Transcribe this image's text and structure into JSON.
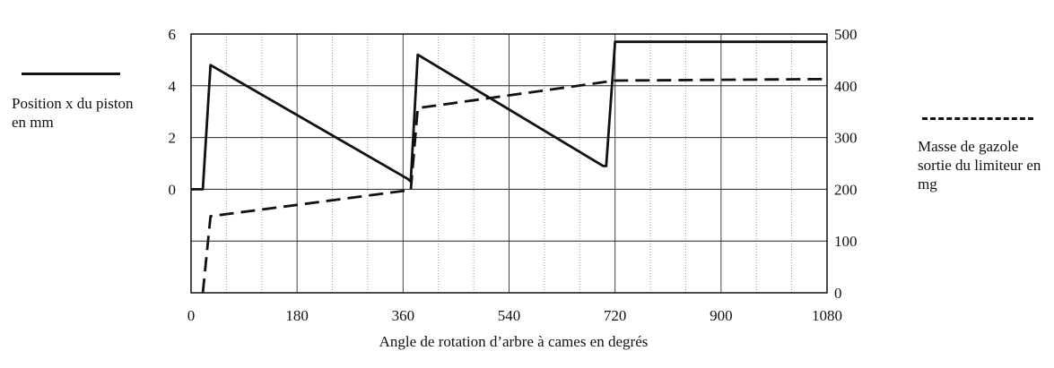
{
  "chart_data": {
    "type": "line",
    "title": "",
    "xlabel": "Angle de rotation d’arbre à cames en degrés",
    "xlim": [
      0,
      1080
    ],
    "xticks": [
      0,
      180,
      360,
      540,
      720,
      900,
      1080
    ],
    "y_left": {
      "lim": [
        -4,
        6
      ],
      "ticks": [
        6,
        4,
        2,
        0
      ]
    },
    "y_right": {
      "lim": [
        0,
        500
      ],
      "ticks": [
        500,
        400,
        300,
        200,
        100,
        0
      ]
    },
    "grid": true,
    "series": [
      {
        "name": "Position x du piston en mm",
        "axis": "left",
        "style": "solid",
        "points": [
          [
            0,
            0
          ],
          [
            20,
            0
          ],
          [
            33,
            4.8
          ],
          [
            368,
            0.4
          ],
          [
            373,
            0.3
          ],
          [
            385,
            5.2
          ],
          [
            700,
            0.9
          ],
          [
            705,
            0.9
          ],
          [
            720,
            5.7
          ],
          [
            1080,
            5.7
          ]
        ]
      },
      {
        "name": "Masse de gazole sortie du limiteur en mg",
        "axis": "right",
        "style": "dashed",
        "points": [
          [
            20,
            0
          ],
          [
            33,
            148
          ],
          [
            368,
            198
          ],
          [
            373,
            198
          ],
          [
            385,
            357
          ],
          [
            720,
            410
          ],
          [
            1080,
            413
          ]
        ]
      }
    ]
  },
  "legend": {
    "left_label": "Position x du piston  en mm",
    "right_label": "Masse de gazole sortie du limiteur en mg"
  }
}
